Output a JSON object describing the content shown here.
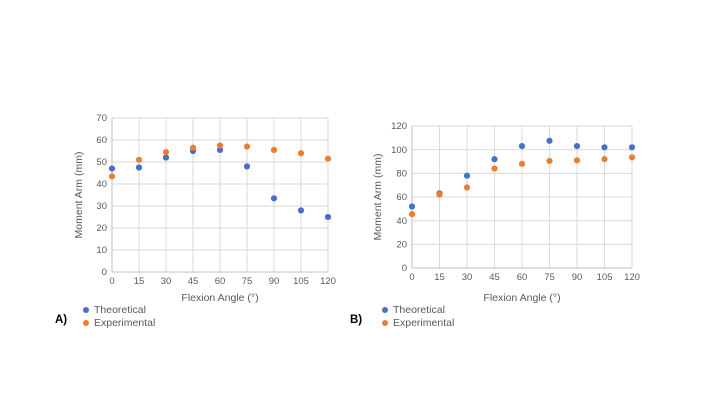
{
  "colors": {
    "theoretical": "#4472C4",
    "experimental": "#ED7D31",
    "gridline": "#D9D9D9",
    "axis_line": "#BFBFBF",
    "axis_text": "#595959",
    "background": "#FFFFFF"
  },
  "chart_data": [
    {
      "type": "scatter",
      "panel_label": "A)",
      "xlabel": "Flexion Angle (°)",
      "ylabel": "Moment Arm (mm)",
      "xlim": [
        0,
        120
      ],
      "ylim": [
        0,
        70
      ],
      "x_ticks": [
        0,
        15,
        30,
        45,
        60,
        75,
        90,
        105,
        120
      ],
      "y_ticks": [
        0,
        10,
        20,
        30,
        40,
        50,
        60,
        70
      ],
      "grid": true,
      "legend_position": "bottom-left",
      "x": [
        0,
        15,
        30,
        45,
        60,
        75,
        90,
        105,
        120
      ],
      "series": [
        {
          "name": "Theoretical",
          "color": "#4472C4",
          "marker": "circle",
          "trendline": "dotted-polynomial",
          "values": [
            47,
            47.5,
            52,
            55,
            55.5,
            48,
            33.5,
            28,
            25
          ]
        },
        {
          "name": "Experimental",
          "color": "#ED7D31",
          "marker": "circle",
          "trendline": "dotted-polynomial",
          "values": [
            43.5,
            51,
            54.5,
            56.5,
            57.5,
            57,
            55.5,
            54,
            51.5
          ]
        }
      ]
    },
    {
      "type": "scatter",
      "panel_label": "B)",
      "xlabel": "Flexion Angle (°)",
      "ylabel": "Moment Arm (mm)",
      "xlim": [
        0,
        120
      ],
      "ylim": [
        0,
        120
      ],
      "x_ticks": [
        0,
        15,
        30,
        45,
        60,
        75,
        90,
        105,
        120
      ],
      "y_ticks": [
        0,
        20,
        40,
        60,
        80,
        100,
        120
      ],
      "grid": true,
      "legend_position": "bottom-left",
      "x": [
        0,
        15,
        30,
        45,
        60,
        75,
        90,
        105,
        120
      ],
      "series": [
        {
          "name": "Theoretical",
          "color": "#4472C4",
          "marker": "circle",
          "trendline": "dotted-polynomial",
          "values": [
            52,
            63,
            78,
            92,
            103,
            107.5,
            103,
            102,
            102
          ]
        },
        {
          "name": "Experimental",
          "color": "#ED7D31",
          "marker": "circle",
          "trendline": "dotted-polynomial",
          "values": [
            45.5,
            62,
            68,
            84,
            88,
            90.5,
            91,
            92,
            93.5
          ]
        }
      ]
    }
  ]
}
